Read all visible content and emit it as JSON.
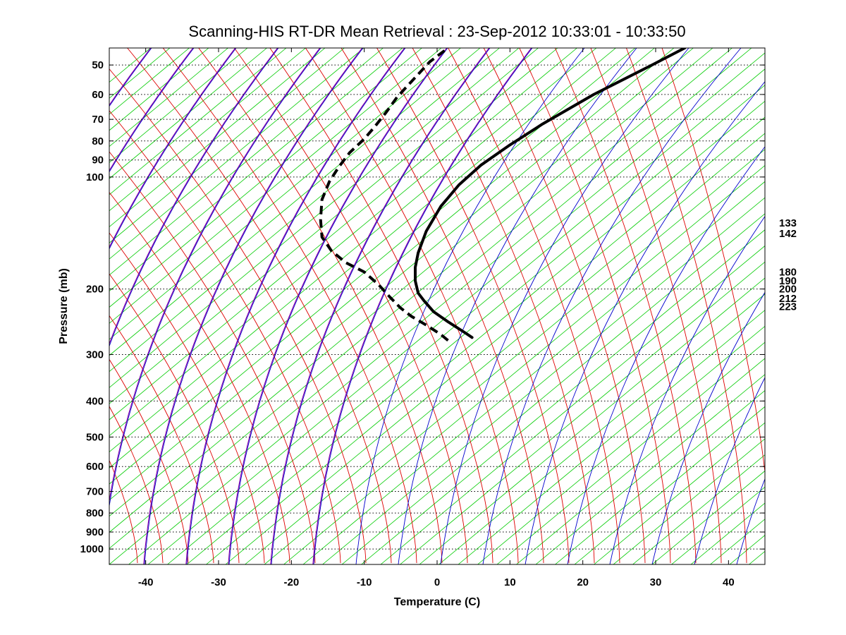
{
  "chart_data": {
    "type": "line",
    "subtype": "skew-t log-p diagram",
    "title": "Scanning-HIS RT-DR Mean Retrieval : 23-Sep-2012 10:33:01 - 10:33:50",
    "xlabel": "Temperature (C)",
    "ylabel": "Pressure (mb)",
    "xlim": [
      -45,
      45
    ],
    "ylim": [
      1100,
      45
    ],
    "y_scale": "log",
    "x_ticks": [
      -40,
      -30,
      -20,
      -10,
      0,
      10,
      20,
      30,
      40
    ],
    "y_ticks": [
      50,
      60,
      70,
      80,
      90,
      100,
      200,
      300,
      400,
      500,
      600,
      700,
      800,
      900,
      1000
    ],
    "pressure_gridlines": "dotted",
    "right_side_labels": [
      "133",
      "142",
      "180",
      "190",
      "200",
      "212",
      "223"
    ],
    "right_side_label_pressures": [
      133,
      142,
      180,
      190,
      200,
      212,
      223
    ],
    "background_line_colors": {
      "isotherms": "#00cc00",
      "dry_adiabats": "#0000cc",
      "moist_adiabats": "#dd0000",
      "adiabat_overlay": "#8800aa"
    },
    "series": [
      {
        "style": "solid",
        "color": "#000000",
        "x": [
          4.8,
          3.8,
          1.5,
          -0.5,
          -1.8,
          -2.6,
          -3.0,
          -3.0,
          -2.6,
          -1.5,
          0.5,
          3.0,
          6.0,
          10.0,
          14.5,
          21.5,
          29.5,
          34.0
        ],
        "y": [
          270,
          262,
          245,
          230,
          215,
          205,
          190,
          175,
          160,
          140,
          120,
          105,
          93,
          82,
          72,
          60,
          50,
          45
        ]
      },
      {
        "style": "dashed",
        "color": "#000000",
        "x": [
          1.5,
          0.5,
          -1.5,
          -3.5,
          -5.0,
          -6.5,
          -8.0,
          -10.0,
          -12.5,
          -14.5,
          -15.8,
          -16.0,
          -15.8,
          -14.8,
          -13.5,
          -12.0,
          -10.0,
          -8.5,
          -7.0,
          -5.5,
          -3.0,
          -1.0,
          1.5
        ],
        "y": [
          275,
          265,
          250,
          237,
          225,
          210,
          195,
          180,
          170,
          158,
          145,
          130,
          115,
          103,
          94,
          86,
          79,
          73,
          67,
          61,
          54,
          49,
          45
        ]
      }
    ]
  }
}
